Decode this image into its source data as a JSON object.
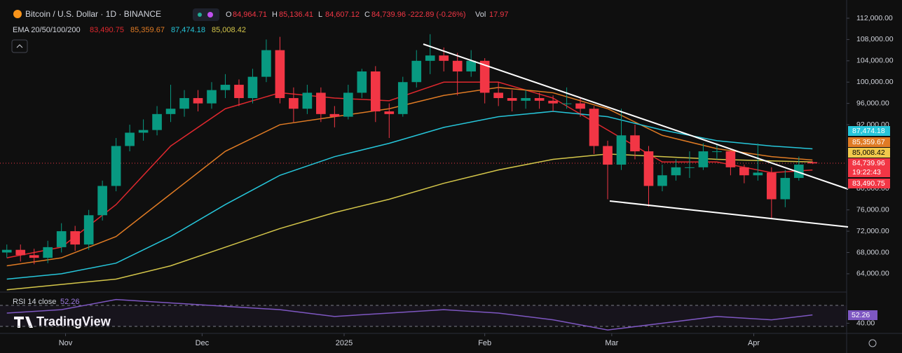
{
  "chart_data": {
    "type": "candlestick",
    "title": "Bitcoin / U.S. Dollar · 1D · BINANCE",
    "ohlc": [
      {
        "label": "O",
        "value": "84,964.71"
      },
      {
        "label": "H",
        "value": "85,136.41"
      },
      {
        "label": "L",
        "value": "84,607.12"
      },
      {
        "label": "C",
        "value": "84,739.96"
      }
    ],
    "change": "-222.89 (-0.26%)",
    "volume": {
      "label": "Vol",
      "value": "17.97"
    },
    "up_color": "#089981",
    "down_color": "#f23645",
    "candles": {
      "open": [
        68000,
        68500,
        67500,
        67000,
        69000,
        72000,
        69500,
        75000,
        80500,
        88000,
        90500,
        91000,
        94000,
        95000,
        97000,
        96000,
        98500,
        99500,
        97000,
        101000,
        106000,
        97000,
        95000,
        98000,
        94000,
        93500,
        98000,
        102000,
        94500,
        94000,
        100000,
        104000,
        105000,
        104000,
        102000,
        104000,
        98000,
        97000,
        96500,
        97000,
        96500,
        96000,
        96000,
        95000,
        88000,
        84500,
        90000,
        87000,
        80500,
        82500,
        84000,
        84000,
        87000,
        87000,
        84000,
        82500,
        83000,
        78000,
        82000,
        84964.71
      ],
      "high": [
        69500,
        69500,
        68700,
        70200,
        73500,
        73000,
        76000,
        81500,
        89500,
        92000,
        93000,
        95500,
        99500,
        98500,
        98500,
        100000,
        101500,
        100500,
        102500,
        108000,
        108500,
        99000,
        99500,
        99000,
        95500,
        99500,
        102500,
        103000,
        96000,
        101000,
        106000,
        109000,
        106500,
        105500,
        106000,
        104500,
        100000,
        98500,
        98500,
        98000,
        97500,
        99000,
        97000,
        95500,
        89000,
        95000,
        92000,
        88000,
        84500,
        85500,
        87000,
        88500,
        88500,
        87500,
        84500,
        88500,
        84000,
        83500,
        86000,
        85136.41
      ],
      "low": [
        67000,
        66300,
        65800,
        66000,
        68000,
        68300,
        68500,
        74000,
        79500,
        87000,
        89000,
        90000,
        92500,
        93500,
        94500,
        95000,
        97000,
        95500,
        96000,
        100000,
        96000,
        92500,
        94000,
        92500,
        91500,
        93000,
        97000,
        92500,
        89500,
        93500,
        99000,
        101500,
        102000,
        97500,
        101000,
        96000,
        95500,
        94500,
        95000,
        95000,
        94500,
        95000,
        93500,
        86500,
        78000,
        83500,
        85500,
        76600,
        79500,
        81500,
        82000,
        83500,
        85500,
        82500,
        81000,
        81500,
        74500,
        76500,
        81500,
        84607.12
      ],
      "close": [
        68500,
        67500,
        67000,
        69000,
        72000,
        69500,
        75000,
        80500,
        88000,
        90500,
        91000,
        94000,
        95000,
        97000,
        96000,
        98500,
        99500,
        97000,
        101000,
        106000,
        97000,
        95000,
        98000,
        94000,
        93500,
        98000,
        102000,
        94500,
        94000,
        100000,
        104000,
        105000,
        104000,
        102000,
        104000,
        98000,
        97000,
        96500,
        97000,
        96500,
        96000,
        96000,
        95000,
        88000,
        84500,
        90000,
        87000,
        80500,
        82500,
        84000,
        84000,
        87000,
        87000,
        84000,
        82500,
        83000,
        78000,
        82000,
        84500,
        84739.96
      ]
    },
    "ylim": [
      60700,
      115420
    ],
    "yticks": [
      {
        "value": 112000,
        "label": "112,000.00"
      },
      {
        "value": 108000,
        "label": "108,000.00"
      },
      {
        "value": 104000,
        "label": "104,000.00"
      },
      {
        "value": 100000,
        "label": "100,000.00"
      },
      {
        "value": 96000,
        "label": "96,000.00"
      },
      {
        "value": 92000,
        "label": "92,000.00"
      },
      {
        "value": 80000,
        "label": "80,000.00"
      },
      {
        "value": 76000,
        "label": "76,000.00"
      },
      {
        "value": 72000,
        "label": "72,000.00"
      },
      {
        "value": 68000,
        "label": "68,000.00"
      },
      {
        "value": 64000,
        "label": "64,000.00"
      }
    ],
    "xlim": [
      -0.5,
      61.5
    ],
    "xticks": [
      {
        "value": 4.3,
        "label": "Nov"
      },
      {
        "value": 14.3,
        "label": "Dec"
      },
      {
        "value": 24.7,
        "label": "2025"
      },
      {
        "value": 35,
        "label": "Feb"
      },
      {
        "value": 44.3,
        "label": "Mar"
      },
      {
        "value": 54.7,
        "label": "Apr"
      }
    ],
    "ema": {
      "label": "EMA 20/50/100/200",
      "x": [
        0,
        4,
        8,
        12,
        16,
        20,
        24,
        28,
        32,
        36,
        40,
        44,
        48,
        52,
        56,
        59
      ],
      "series": [
        {
          "color": "#e0282e",
          "last": "83,490.75",
          "values": [
            67000,
            69000,
            77000,
            88000,
            95000,
            98000,
            97000,
            96500,
            100000,
            100000,
            97000,
            91000,
            85000,
            85000,
            83000,
            83490.75
          ]
        },
        {
          "color": "#e07b24",
          "last": "85,359.67",
          "values": [
            65500,
            67000,
            71000,
            79000,
            87000,
            92000,
            93500,
            95000,
            97500,
            99000,
            98000,
            95000,
            90000,
            87500,
            86000,
            85359.67
          ]
        },
        {
          "color": "#26c6da",
          "last": "87,474.18",
          "values": [
            63000,
            64000,
            66000,
            71000,
            77000,
            82500,
            86000,
            88500,
            91500,
            93500,
            94500,
            93500,
            91000,
            89000,
            88000,
            87474.18
          ]
        },
        {
          "color": "#d4c64a",
          "last": "85,008.42",
          "values": [
            61000,
            62000,
            63000,
            65500,
            69000,
            72500,
            75500,
            78000,
            81000,
            83500,
            85500,
            86500,
            86000,
            85500,
            85200,
            85008.42
          ]
        }
      ]
    },
    "price_badges": [
      {
        "label": "87,474.18",
        "color": "#26c6da"
      },
      {
        "label": "85,359.67",
        "color": "#e07b24"
      },
      {
        "label": "85,008.42",
        "color": "#f2c94c"
      },
      {
        "label": "84,739.96",
        "color": "#f23645"
      },
      {
        "label": "19:22:43",
        "color": "#f23645"
      },
      {
        "label": "83,490.75",
        "color": "#f23645"
      }
    ],
    "rsi": {
      "label": "RSI 14 close",
      "value": "52.26",
      "color": "#7e57c2",
      "x": [
        0,
        4,
        8,
        12,
        16,
        20,
        24,
        28,
        32,
        36,
        40,
        44,
        48,
        52,
        56,
        59
      ],
      "values": [
        55,
        60,
        75,
        70,
        65,
        60,
        50,
        55,
        60,
        55,
        45,
        30,
        40,
        50,
        45,
        52.26
      ],
      "ylim": [
        25,
        85
      ],
      "yticks": [
        {
          "value": 40,
          "label": "40.00"
        }
      ]
    }
  },
  "branding": "TradingView"
}
